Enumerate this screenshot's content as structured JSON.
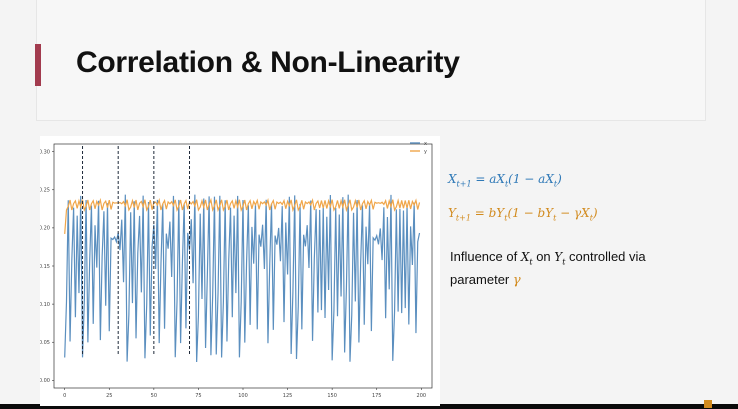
{
  "slide": {
    "title": "Correlation & Non-Linearity",
    "accent_color": "#a23b4e"
  },
  "equations": {
    "eq1": {
      "lhs": "X",
      "lhs_sub": "t+1",
      "rhs_a": " = aX",
      "rhs_a_sub": "t",
      "rhs_b": "(1 − aX",
      "rhs_b_sub": "t",
      "rhs_c": ")",
      "color": "#2f79b7"
    },
    "eq2": {
      "lhs": "Y",
      "lhs_sub": "t+1",
      "rhs_a": " = bY",
      "rhs_a_sub": "t",
      "rhs_b": "(1 − bY",
      "rhs_b_sub": "t",
      "rhs_c": " − γX",
      "rhs_c_sub": "t",
      "rhs_d": ")",
      "color": "#d28b1f"
    }
  },
  "description": {
    "part1": "Influence of ",
    "var1": "X",
    "var1_sub": "t",
    "part2": " on ",
    "var2": "Y",
    "var2_sub": "t",
    "part3": " controlled via parameter ",
    "param": "γ",
    "param_color": "#d28b1f"
  },
  "chart_data": {
    "type": "line",
    "x_range": [
      0,
      199
    ],
    "xlim": [
      -6,
      206
    ],
    "ylim": [
      -0.01,
      0.31
    ],
    "x_ticks": [
      0,
      25,
      50,
      75,
      100,
      125,
      150,
      175,
      200
    ],
    "x_tick_labels": [
      "0",
      "25",
      "50",
      "75",
      "100",
      "125",
      "150",
      "175",
      "200"
    ],
    "y_ticks": [
      0.0,
      0.05,
      0.1,
      0.15,
      0.2,
      0.25,
      0.3
    ],
    "y_tick_labels": [
      "0.00",
      "0.05",
      "0.10",
      "0.15",
      "0.20",
      "0.25",
      "0.30"
    ],
    "grid": false,
    "legend_position": "top-right",
    "vlines": [
      10,
      30,
      50,
      70
    ],
    "vline_style": "dashed",
    "series": [
      {
        "name": "x",
        "color": "#5b8fbf",
        "generator": "logistic",
        "a": 3.9,
        "x0": 0.12,
        "scale": 0.25
      },
      {
        "name": "y",
        "color": "#f0a64a",
        "generator": "coupled-logistic",
        "b": 1.1,
        "gamma": 0.3,
        "y0": 0.2
      }
    ]
  }
}
